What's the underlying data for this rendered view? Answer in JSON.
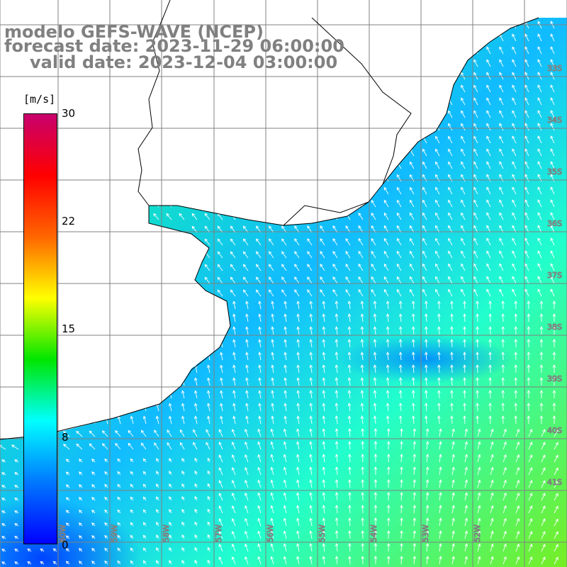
{
  "title": {
    "line1": "modelo GEFS-WAVE (NCEP)",
    "line2": "forecast date: 2023-11-29 06:00:00",
    "line3": "valid date: 2023-12-04 03:00:00"
  },
  "legend": {
    "unit": "[m/s]",
    "ticks": [
      "30",
      "22",
      "15",
      "8",
      "0"
    ],
    "colors": [
      "#c8006e",
      "#ff0000",
      "#ff6600",
      "#ffff00",
      "#00e600",
      "#00ffff",
      "#0078ff",
      "#0000ff"
    ]
  },
  "graticule": {
    "lat_labels": [
      "33S",
      "34S",
      "35S",
      "36S",
      "37S",
      "38S",
      "39S",
      "40S",
      "41S"
    ],
    "lon_labels": [
      "60W",
      "59W",
      "58W",
      "57W",
      "56W",
      "55W",
      "54W",
      "53W",
      "52W"
    ]
  },
  "map": {
    "parameter": "wind speed and direction",
    "ocean_gradient": [
      "#2277ff",
      "#11bbff",
      "#00ffff",
      "#22ff99",
      "#33ee33",
      "#66ee22"
    ],
    "land_color": "#ffffff",
    "coast_color": "#000000",
    "grid_color": "#808080"
  }
}
